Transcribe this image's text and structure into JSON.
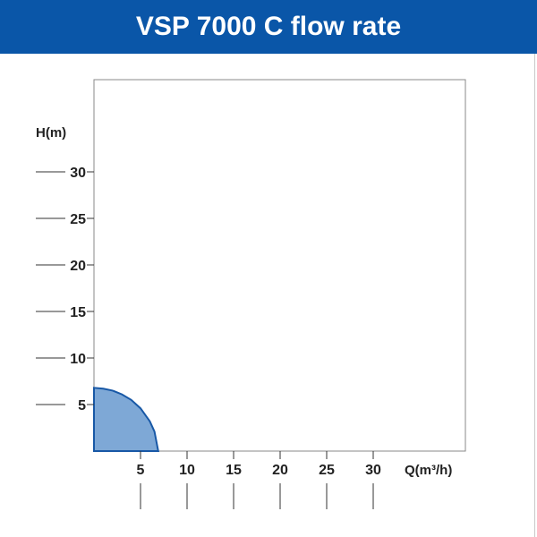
{
  "header": {
    "title": "VSP 7000 C flow rate"
  },
  "chart_data": {
    "type": "area",
    "title": "VSP 7000 C flow rate",
    "xlabel": "Q(m³/h)",
    "ylabel": "H(m)",
    "xlim": [
      0,
      40
    ],
    "ylim": [
      0,
      40
    ],
    "x_ticks": [
      5,
      10,
      15,
      20,
      25,
      30
    ],
    "y_ticks": [
      5,
      10,
      15,
      20,
      25,
      30
    ],
    "x_tick_labels": [
      "5",
      "10",
      "15",
      "20",
      "25",
      "30"
    ],
    "y_tick_labels": [
      "5",
      "10",
      "15",
      "20",
      "25",
      "30"
    ],
    "grid": false,
    "series": [
      {
        "x": [
          0,
          1,
          2,
          3,
          4,
          5,
          6,
          6.5,
          6.9
        ],
        "y": [
          6.8,
          6.7,
          6.5,
          6.1,
          5.5,
          4.6,
          3.2,
          2.1,
          0
        ]
      }
    ],
    "colors": {
      "fill": "#7ea8d6",
      "stroke": "#1858a6"
    }
  }
}
